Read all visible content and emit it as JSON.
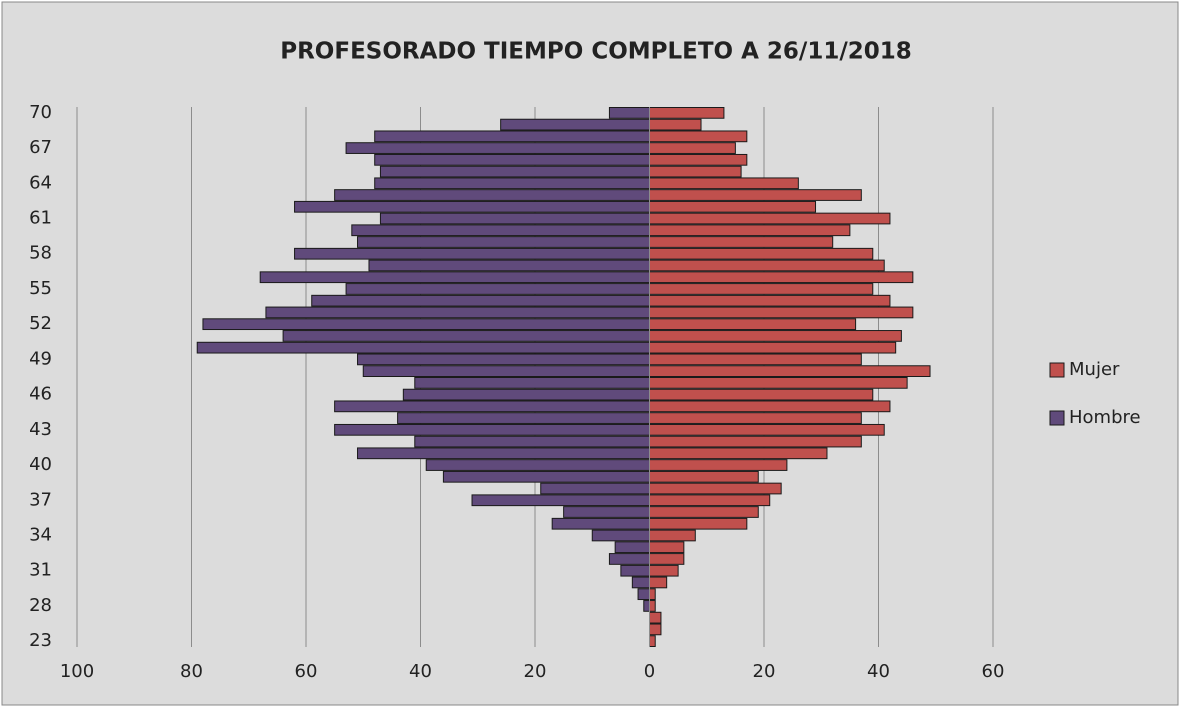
{
  "chart_data": {
    "type": "pyramid",
    "title": "PROFESORADO TIEMPO COMPLETO A 26/11/2018",
    "categories": [
      "70",
      null,
      null,
      "67",
      null,
      null,
      "64",
      null,
      null,
      "61",
      null,
      null,
      "58",
      null,
      null,
      "55",
      null,
      null,
      "52",
      null,
      null,
      "49",
      null,
      null,
      "46",
      null,
      null,
      "43",
      null,
      null,
      "40",
      null,
      null,
      "37",
      null,
      null,
      "34",
      null,
      null,
      "31",
      null,
      null,
      "28",
      null,
      null,
      "23"
    ],
    "series": [
      {
        "name": "Mujer",
        "color": "#c0504d",
        "values": [
          13,
          9,
          17,
          15,
          17,
          16,
          26,
          37,
          29,
          42,
          35,
          32,
          39,
          41,
          46,
          39,
          42,
          46,
          36,
          44,
          43,
          37,
          49,
          45,
          39,
          42,
          37,
          41,
          37,
          31,
          24,
          19,
          23,
          21,
          19,
          17,
          8,
          6,
          6,
          5,
          3,
          1,
          1,
          2,
          2,
          1
        ]
      },
      {
        "name": "Hombre",
        "color": "#604a7b",
        "values": [
          -7,
          -26,
          -48,
          -53,
          -48,
          -47,
          -48,
          -55,
          -62,
          -47,
          -52,
          -51,
          -62,
          -49,
          -68,
          -53,
          -59,
          -67,
          -78,
          -64,
          -79,
          -51,
          -50,
          -41,
          -43,
          -55,
          -44,
          -55,
          -41,
          -51,
          -39,
          -36,
          -19,
          -31,
          -15,
          -17,
          -10,
          -6,
          -7,
          -5,
          -3,
          -2,
          -1,
          0,
          0,
          0
        ]
      }
    ],
    "xlim": [
      -100,
      60
    ],
    "xticks": [
      {
        "value": -100,
        "label": "100"
      },
      {
        "value": -80,
        "label": "80"
      },
      {
        "value": -60,
        "label": "60"
      },
      {
        "value": -40,
        "label": "40"
      },
      {
        "value": -20,
        "label": "20"
      },
      0,
      20,
      40,
      60
    ],
    "grid": true,
    "legend": "right"
  }
}
